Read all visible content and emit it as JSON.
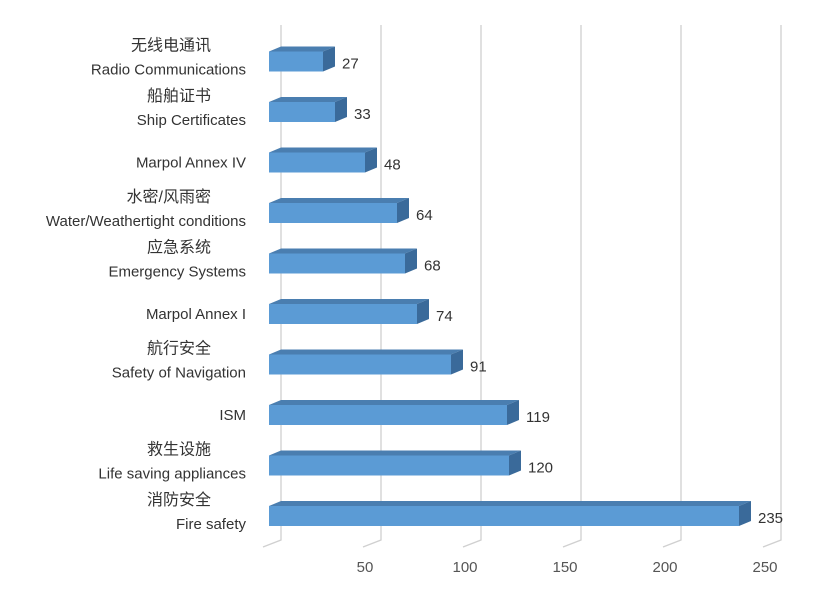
{
  "chart_data": {
    "type": "bar",
    "orientation": "horizontal",
    "three_d": true,
    "categories": [
      {
        "cn": "消防安全",
        "en": "Fire safety"
      },
      {
        "cn": "救生设施",
        "en": "Life saving appliances"
      },
      {
        "cn": "",
        "en": "ISM"
      },
      {
        "cn": "航行安全",
        "en": "Safety of Navigation"
      },
      {
        "cn": "",
        "en": "Marpol Annex I"
      },
      {
        "cn": "应急系统",
        "en": "Emergency Systems"
      },
      {
        "cn": "水密/风雨密",
        "en": "Water/Weathertight conditions"
      },
      {
        "cn": "",
        "en": "Marpol Annex IV"
      },
      {
        "cn": "船舶证书",
        "en": "Ship Certificates"
      },
      {
        "cn": "无线电通讯",
        "en": "Radio Communications"
      }
    ],
    "values": [
      235,
      120,
      119,
      91,
      74,
      68,
      64,
      48,
      33,
      27
    ],
    "xlim": [
      0,
      250
    ],
    "xticks": [
      50,
      100,
      150,
      200,
      250
    ],
    "grid": true,
    "legend": "none",
    "title": "",
    "xlabel": "",
    "ylabel": ""
  },
  "colors": {
    "bar_front": "#5b9bd5",
    "bar_top": "#4a7eb0",
    "bar_side": "#3a6a9a",
    "gridline": "#d0d0d0"
  }
}
